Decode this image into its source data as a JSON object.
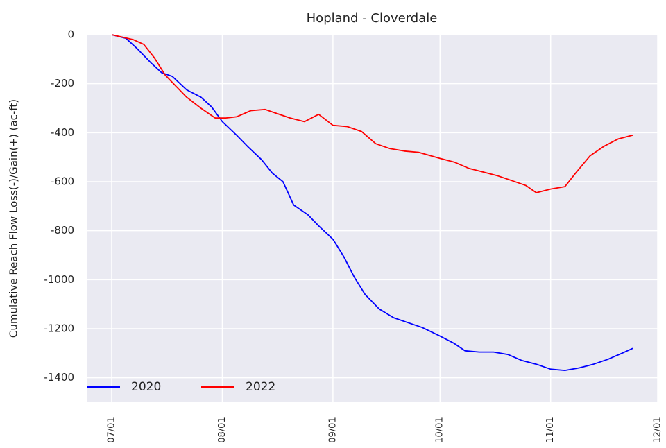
{
  "chart_data": {
    "type": "line",
    "title": "Hopland - Cloverdale",
    "y_label": "Cumulative Reach Flow Loss(-)/Gain(+) (ac-ft)",
    "xlim": [
      "06/24",
      "12/01"
    ],
    "xticks": [
      "07/01",
      "08/01",
      "09/01",
      "10/01",
      "11/01",
      "12/01"
    ],
    "ylim": [
      -1500,
      0
    ],
    "yticks": [
      -1400,
      -1200,
      -1000,
      -800,
      -600,
      -400,
      -200,
      0
    ],
    "grid": true,
    "legend": "lower left",
    "series": [
      {
        "name": "2020",
        "color": "#0000ff",
        "x": [
          "07/01",
          "07/05",
          "07/08",
          "07/12",
          "07/15",
          "07/18",
          "07/22",
          "07/26",
          "07/29",
          "08/01",
          "08/05",
          "08/08",
          "08/12",
          "08/15",
          "08/18",
          "08/21",
          "08/25",
          "08/28",
          "09/01",
          "09/04",
          "09/07",
          "09/10",
          "09/14",
          "09/18",
          "09/22",
          "09/26",
          "10/01",
          "10/05",
          "10/08",
          "10/12",
          "10/16",
          "10/20",
          "10/24",
          "10/28",
          "11/01",
          "11/05",
          "11/09",
          "11/13",
          "11/17",
          "11/21",
          "11/24"
        ],
        "values": [
          0,
          -15,
          -55,
          -115,
          -155,
          -170,
          -225,
          -255,
          -295,
          -355,
          -410,
          -455,
          -510,
          -565,
          -600,
          -695,
          -735,
          -780,
          -835,
          -905,
          -990,
          -1060,
          -1120,
          -1155,
          -1175,
          -1195,
          -1230,
          -1260,
          -1290,
          -1295,
          -1295,
          -1305,
          -1330,
          -1345,
          -1365,
          -1370,
          -1360,
          -1345,
          -1325,
          -1300,
          -1280
        ]
      },
      {
        "name": "2022",
        "color": "#ff0000",
        "x": [
          "07/01",
          "07/04",
          "07/07",
          "07/10",
          "07/13",
          "07/16",
          "07/19",
          "07/22",
          "07/26",
          "07/30",
          "08/02",
          "08/05",
          "08/09",
          "08/13",
          "08/16",
          "08/20",
          "08/24",
          "08/28",
          "09/01",
          "09/05",
          "09/09",
          "09/13",
          "09/17",
          "09/21",
          "09/25",
          "10/01",
          "10/05",
          "10/09",
          "10/13",
          "10/17",
          "10/21",
          "10/25",
          "10/28",
          "11/01",
          "11/05",
          "11/08",
          "11/12",
          "11/16",
          "11/20",
          "11/24"
        ],
        "values": [
          0,
          -10,
          -20,
          -40,
          -95,
          -165,
          -210,
          -255,
          -300,
          -340,
          -340,
          -335,
          -310,
          -305,
          -320,
          -340,
          -355,
          -325,
          -370,
          -375,
          -395,
          -445,
          -465,
          -475,
          -480,
          -505,
          -520,
          -545,
          -560,
          -575,
          -595,
          -615,
          -645,
          -630,
          -620,
          -565,
          -495,
          -455,
          -425,
          -410
        ]
      }
    ]
  }
}
